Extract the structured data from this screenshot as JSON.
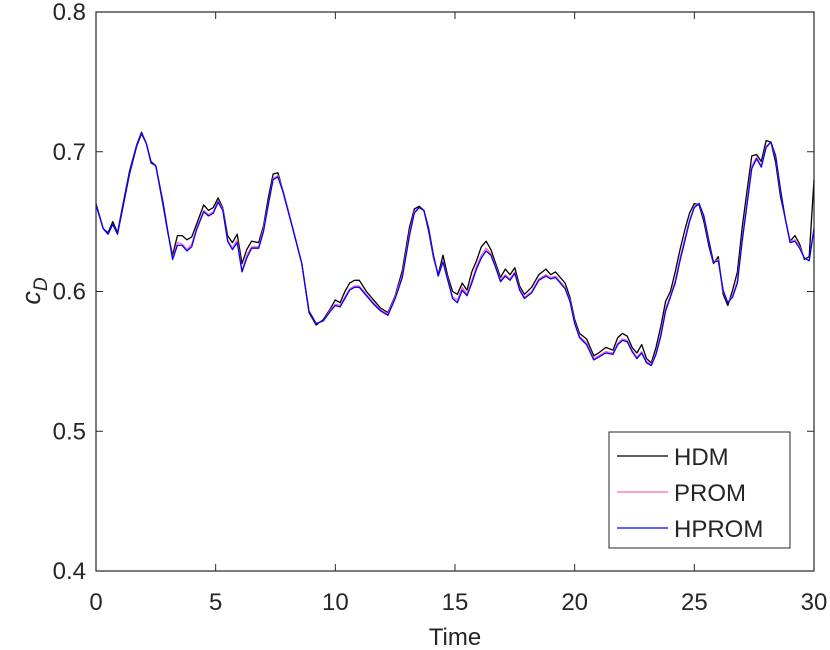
{
  "chart_data": {
    "type": "line",
    "title": "",
    "xlabel": "Time",
    "ylabel": "c",
    "ylabel_subscript": "D",
    "xlim": [
      0,
      30
    ],
    "ylim": [
      0.4,
      0.8
    ],
    "xticks": [
      0,
      5,
      10,
      15,
      20,
      25,
      30
    ],
    "yticks": [
      0.4,
      0.5,
      0.6,
      0.7,
      0.8
    ],
    "xtick_labels": [
      "0",
      "5",
      "10",
      "15",
      "20",
      "25",
      "30"
    ],
    "ytick_labels": [
      "0.4",
      "0.5",
      "0.6",
      "0.7",
      "0.8"
    ],
    "grid": false,
    "legend_position": "bottom-right",
    "x": [
      0,
      0.3,
      0.5,
      0.7,
      0.9,
      1.1,
      1.4,
      1.7,
      1.9,
      2.1,
      2.3,
      2.5,
      2.8,
      3.0,
      3.2,
      3.4,
      3.6,
      3.8,
      4.0,
      4.2,
      4.5,
      4.7,
      4.9,
      5.1,
      5.3,
      5.5,
      5.7,
      5.9,
      6.1,
      6.3,
      6.5,
      6.8,
      7.0,
      7.2,
      7.4,
      7.6,
      7.8,
      8.0,
      8.3,
      8.6,
      8.9,
      9.2,
      9.5,
      9.8,
      10.0,
      10.2,
      10.4,
      10.6,
      10.8,
      11.0,
      11.3,
      11.6,
      11.9,
      12.2,
      12.5,
      12.8,
      13.1,
      13.3,
      13.5,
      13.7,
      13.9,
      14.1,
      14.3,
      14.5,
      14.7,
      14.9,
      15.1,
      15.3,
      15.5,
      15.7,
      15.9,
      16.1,
      16.3,
      16.5,
      16.7,
      16.9,
      17.1,
      17.3,
      17.5,
      17.7,
      17.9,
      18.2,
      18.5,
      18.8,
      19.0,
      19.2,
      19.4,
      19.6,
      19.8,
      20.0,
      20.2,
      20.5,
      20.8,
      21.0,
      21.3,
      21.6,
      21.8,
      22.0,
      22.2,
      22.4,
      22.6,
      22.8,
      23.0,
      23.2,
      23.4,
      23.6,
      23.8,
      24.0,
      24.2,
      24.4,
      24.6,
      24.8,
      25.0,
      25.2,
      25.4,
      25.6,
      25.8,
      26.0,
      26.2,
      26.4,
      26.6,
      26.8,
      27.0,
      27.2,
      27.4,
      27.6,
      27.8,
      28.0,
      28.2,
      28.4,
      28.6,
      28.8,
      29.0,
      29.2,
      29.4,
      29.6,
      29.8,
      30.0
    ],
    "series": [
      {
        "name": "HDM",
        "color": "#000000",
        "values": [
          0.663,
          0.645,
          0.642,
          0.65,
          0.642,
          0.66,
          0.686,
          0.705,
          0.714,
          0.706,
          0.692,
          0.69,
          0.662,
          0.642,
          0.626,
          0.64,
          0.64,
          0.637,
          0.639,
          0.648,
          0.662,
          0.658,
          0.66,
          0.667,
          0.66,
          0.64,
          0.635,
          0.641,
          0.62,
          0.63,
          0.636,
          0.635,
          0.647,
          0.667,
          0.684,
          0.685,
          0.673,
          0.66,
          0.64,
          0.62,
          0.585,
          0.576,
          0.58,
          0.588,
          0.594,
          0.592,
          0.6,
          0.606,
          0.608,
          0.608,
          0.6,
          0.594,
          0.588,
          0.585,
          0.597,
          0.615,
          0.646,
          0.659,
          0.661,
          0.658,
          0.643,
          0.624,
          0.612,
          0.626,
          0.611,
          0.6,
          0.598,
          0.606,
          0.601,
          0.614,
          0.622,
          0.632,
          0.636,
          0.63,
          0.62,
          0.61,
          0.616,
          0.612,
          0.617,
          0.604,
          0.598,
          0.603,
          0.612,
          0.616,
          0.612,
          0.614,
          0.61,
          0.606,
          0.596,
          0.58,
          0.57,
          0.566,
          0.554,
          0.556,
          0.56,
          0.558,
          0.567,
          0.57,
          0.568,
          0.56,
          0.556,
          0.562,
          0.552,
          0.549,
          0.56,
          0.575,
          0.593,
          0.6,
          0.614,
          0.63,
          0.644,
          0.656,
          0.663,
          0.662,
          0.65,
          0.633,
          0.62,
          0.625,
          0.598,
          0.59,
          0.601,
          0.614,
          0.646,
          0.672,
          0.697,
          0.698,
          0.693,
          0.708,
          0.707,
          0.692,
          0.668,
          0.652,
          0.636,
          0.64,
          0.634,
          0.623,
          0.625,
          0.68
        ]
      },
      {
        "name": "PROM",
        "color": "#ff66a3",
        "values": [
          0.662,
          0.645,
          0.641,
          0.648,
          0.641,
          0.658,
          0.684,
          0.704,
          0.713,
          0.706,
          0.693,
          0.69,
          0.664,
          0.643,
          0.624,
          0.635,
          0.634,
          0.63,
          0.634,
          0.645,
          0.658,
          0.655,
          0.657,
          0.665,
          0.659,
          0.637,
          0.631,
          0.637,
          0.615,
          0.626,
          0.632,
          0.632,
          0.645,
          0.663,
          0.681,
          0.683,
          0.673,
          0.66,
          0.64,
          0.62,
          0.586,
          0.577,
          0.579,
          0.587,
          0.591,
          0.59,
          0.596,
          0.602,
          0.604,
          0.604,
          0.598,
          0.592,
          0.587,
          0.584,
          0.596,
          0.612,
          0.642,
          0.657,
          0.66,
          0.658,
          0.645,
          0.625,
          0.611,
          0.622,
          0.609,
          0.596,
          0.594,
          0.603,
          0.598,
          0.608,
          0.618,
          0.626,
          0.631,
          0.627,
          0.618,
          0.608,
          0.612,
          0.609,
          0.614,
          0.602,
          0.596,
          0.6,
          0.609,
          0.612,
          0.61,
          0.611,
          0.607,
          0.603,
          0.594,
          0.578,
          0.568,
          0.563,
          0.552,
          0.554,
          0.557,
          0.556,
          0.563,
          0.566,
          0.565,
          0.558,
          0.553,
          0.557,
          0.55,
          0.548,
          0.556,
          0.57,
          0.588,
          0.597,
          0.608,
          0.624,
          0.638,
          0.651,
          0.661,
          0.663,
          0.653,
          0.636,
          0.621,
          0.623,
          0.6,
          0.592,
          0.597,
          0.608,
          0.638,
          0.664,
          0.69,
          0.696,
          0.69,
          0.704,
          0.707,
          0.696,
          0.672,
          0.652,
          0.636,
          0.637,
          0.632,
          0.624,
          0.622,
          0.645
        ]
      },
      {
        "name": "HPROM",
        "color": "#0000ff",
        "values": [
          0.662,
          0.645,
          0.641,
          0.648,
          0.641,
          0.658,
          0.684,
          0.704,
          0.713,
          0.706,
          0.693,
          0.69,
          0.664,
          0.643,
          0.623,
          0.633,
          0.633,
          0.629,
          0.632,
          0.644,
          0.657,
          0.654,
          0.656,
          0.664,
          0.658,
          0.636,
          0.63,
          0.635,
          0.614,
          0.624,
          0.631,
          0.631,
          0.643,
          0.662,
          0.68,
          0.682,
          0.672,
          0.659,
          0.64,
          0.62,
          0.586,
          0.577,
          0.579,
          0.586,
          0.59,
          0.589,
          0.595,
          0.601,
          0.603,
          0.603,
          0.597,
          0.591,
          0.586,
          0.583,
          0.595,
          0.61,
          0.64,
          0.656,
          0.66,
          0.658,
          0.645,
          0.626,
          0.611,
          0.621,
          0.608,
          0.595,
          0.592,
          0.601,
          0.597,
          0.606,
          0.616,
          0.624,
          0.629,
          0.626,
          0.617,
          0.607,
          0.611,
          0.608,
          0.613,
          0.601,
          0.595,
          0.599,
          0.608,
          0.611,
          0.609,
          0.61,
          0.606,
          0.602,
          0.593,
          0.577,
          0.567,
          0.562,
          0.551,
          0.553,
          0.556,
          0.555,
          0.562,
          0.565,
          0.564,
          0.557,
          0.552,
          0.556,
          0.549,
          0.547,
          0.555,
          0.568,
          0.586,
          0.596,
          0.606,
          0.622,
          0.636,
          0.65,
          0.66,
          0.663,
          0.654,
          0.637,
          0.621,
          0.622,
          0.601,
          0.592,
          0.596,
          0.606,
          0.636,
          0.662,
          0.688,
          0.695,
          0.689,
          0.703,
          0.707,
          0.697,
          0.673,
          0.652,
          0.635,
          0.636,
          0.631,
          0.624,
          0.622,
          0.645
        ]
      }
    ]
  }
}
